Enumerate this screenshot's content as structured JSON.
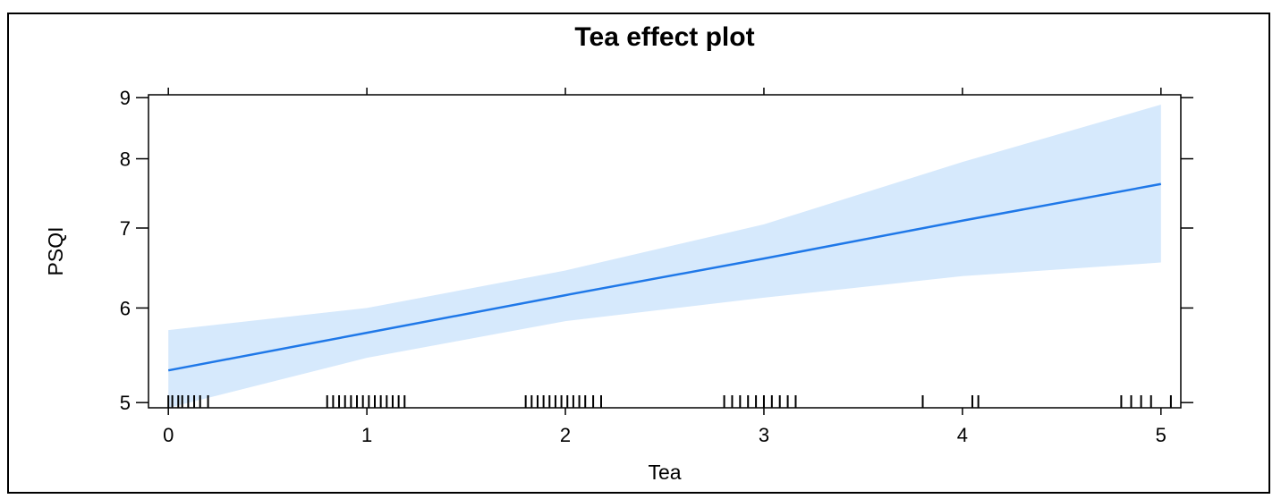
{
  "chart_data": {
    "type": "line",
    "title": "Tea effect plot",
    "xlabel": "Tea",
    "ylabel": "PSQI",
    "xlim": [
      -0.1,
      5.1
    ],
    "ylim": [
      4.95,
      9.05
    ],
    "x_ticks": [
      0,
      1,
      2,
      3,
      4,
      5
    ],
    "y_ticks": [
      5,
      6,
      7,
      8,
      9
    ],
    "y_scale": "log",
    "grid": false,
    "series": [
      {
        "x": [
          0,
          1,
          2,
          3,
          4,
          5
        ],
        "y": [
          5.32,
          5.72,
          6.15,
          6.6,
          7.1,
          7.62
        ],
        "lower": [
          4.95,
          5.45,
          5.85,
          6.12,
          6.38,
          6.55
        ],
        "upper": [
          5.75,
          6.0,
          6.45,
          7.05,
          7.95,
          8.88
        ]
      }
    ],
    "rug": [
      0.0,
      0.02,
      0.05,
      0.07,
      0.1,
      0.13,
      0.16,
      0.2,
      0.8,
      0.83,
      0.86,
      0.89,
      0.92,
      0.95,
      0.98,
      1.01,
      1.04,
      1.07,
      1.1,
      1.13,
      1.16,
      1.19,
      1.8,
      1.83,
      1.86,
      1.89,
      1.92,
      1.95,
      1.98,
      2.01,
      2.04,
      2.07,
      2.1,
      2.14,
      2.18,
      2.8,
      2.84,
      2.88,
      2.92,
      2.96,
      3.0,
      3.04,
      3.08,
      3.12,
      3.16,
      3.8,
      4.05,
      4.08,
      4.8,
      4.85,
      4.9,
      4.95,
      5.05
    ],
    "colors": {
      "line": "#1f78e8",
      "band": "#d6e9fc"
    }
  }
}
